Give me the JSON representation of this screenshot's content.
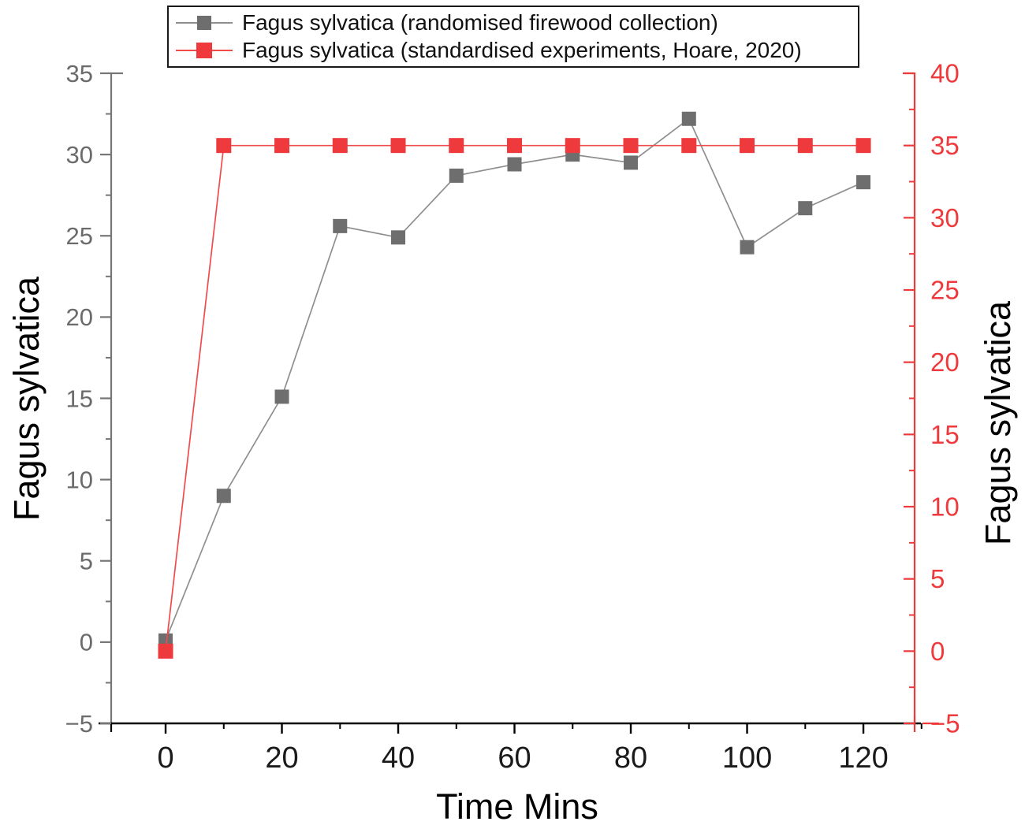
{
  "chart_data": {
    "type": "line",
    "title": "",
    "xlabel": "Time Mins",
    "ylabel_left": "Fagus sylvatica",
    "ylabel_right": "Fagus sylvatica",
    "grid": false,
    "legend_position": "top-center",
    "x": [
      0,
      10,
      20,
      30,
      40,
      50,
      60,
      70,
      80,
      90,
      100,
      110,
      120
    ],
    "series": [
      {
        "name": "Fagus sylvatica (randomised firewood collection)",
        "axis": "left",
        "marker": "square",
        "marker_color": "#6e6e6e",
        "line_color": "#8f8f8f",
        "marker_size": 18,
        "values": [
          0.1,
          9.0,
          15.1,
          25.6,
          24.9,
          28.7,
          29.4,
          30.0,
          29.5,
          32.2,
          24.3,
          26.7,
          28.3
        ]
      },
      {
        "name": "Fagus sylvatica (standardised experiments, Hoare, 2020)",
        "axis": "right",
        "marker": "square",
        "marker_color": "#ee3a3c",
        "line_color": "#f04b4c",
        "marker_size": 19,
        "values": [
          0,
          35,
          35,
          35,
          35,
          35,
          35,
          35,
          35,
          35,
          35,
          35,
          35
        ]
      }
    ],
    "x_axis": {
      "range": [
        -9.36,
        128.81
      ],
      "major_ticks": [
        0,
        20,
        40,
        60,
        80,
        100,
        120
      ],
      "minor_ticks": [
        10,
        30,
        50,
        70,
        90,
        110,
        130
      ],
      "axis_color": "#000000",
      "tick_label_color": "#1a1a1a"
    },
    "y_axis_left": {
      "range": [
        -5,
        35
      ],
      "major_ticks": [
        -5,
        0,
        5,
        10,
        15,
        20,
        25,
        30,
        35
      ],
      "minor_ticks": [
        -2.5,
        2.5,
        7.5,
        12.5,
        17.5,
        22.5,
        27.5,
        32.5
      ],
      "axis_color": "#767676",
      "tick_label_color": "#6b6b6b"
    },
    "y_axis_right": {
      "range": [
        -5,
        40
      ],
      "major_ticks": [
        -5,
        0,
        5,
        10,
        15,
        20,
        25,
        30,
        35,
        40
      ],
      "minor_ticks": [
        -2.5,
        2.5,
        7.5,
        12.5,
        17.5,
        22.5,
        27.5,
        32.5,
        37.5
      ],
      "axis_color": "#ee3a3c",
      "tick_label_color": "#ee3a3c"
    },
    "legend": {
      "items": [
        {
          "label": "Fagus sylvatica (randomised firewood collection)",
          "marker_color": "#6e6e6e",
          "line_color": "#8f8f8f",
          "marker_size": 18
        },
        {
          "label": "Fagus sylvatica (standardised experiments, Hoare, 2020)",
          "marker_color": "#ee3a3c",
          "line_color": "#f04b4c",
          "marker_size": 20
        }
      ]
    }
  }
}
